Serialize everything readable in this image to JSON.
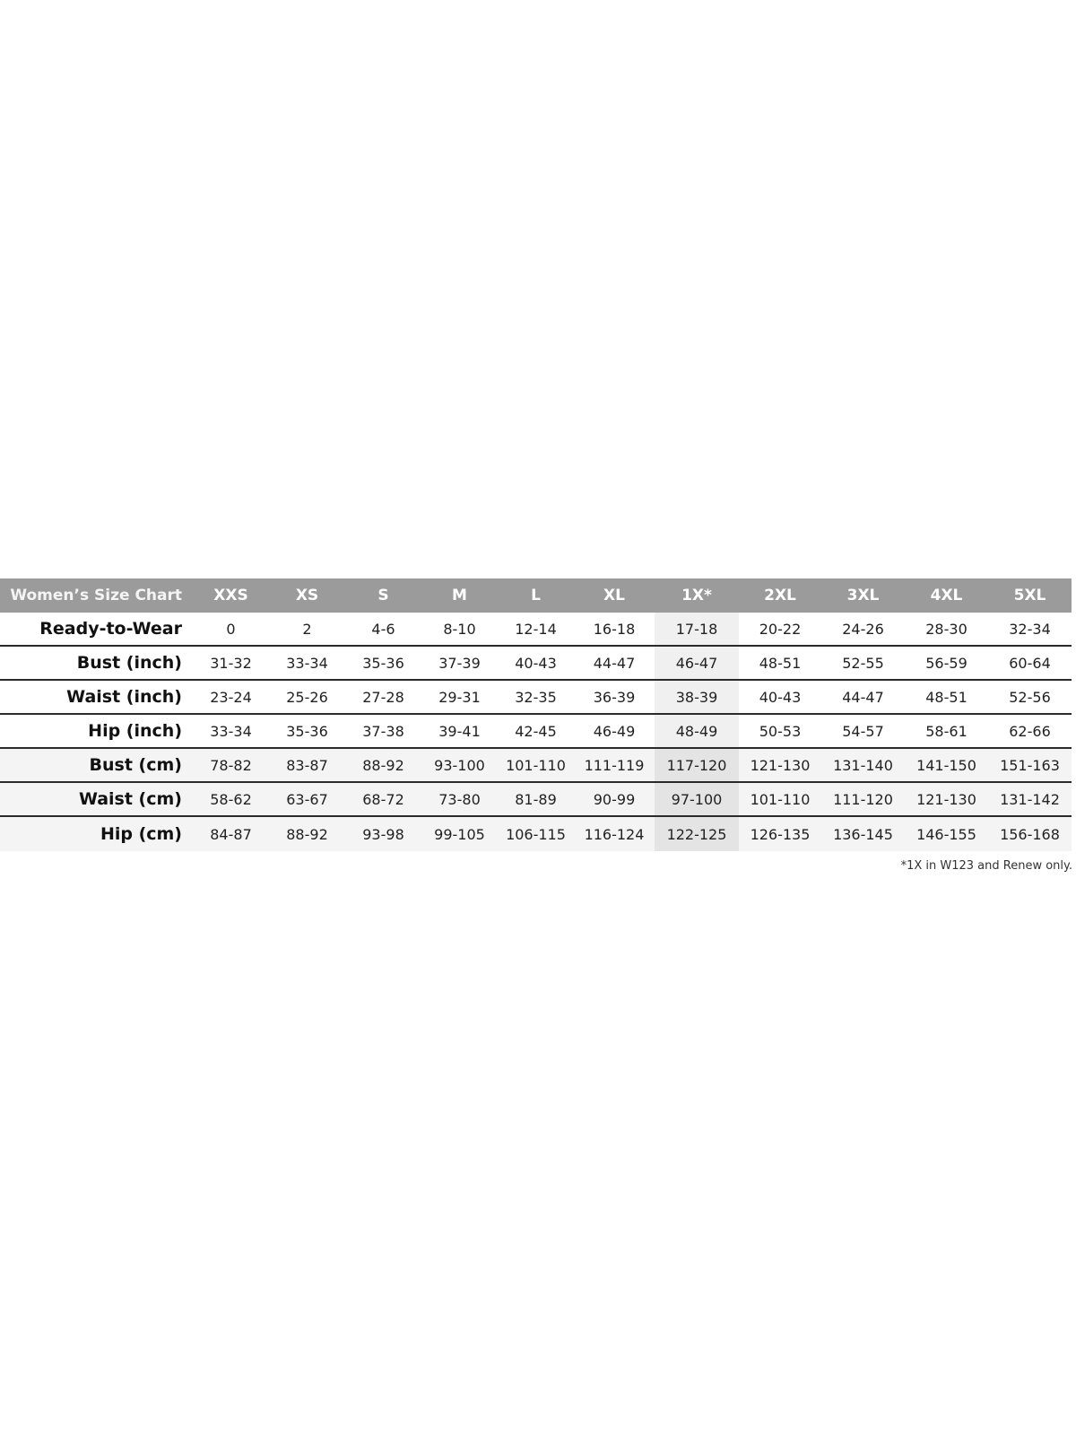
{
  "header": {
    "title": "Women’s Size Chart",
    "sizes": [
      "XXS",
      "XS",
      "S",
      "M",
      "L",
      "XL",
      "1X*",
      "2XL",
      "3XL",
      "4XL",
      "5XL"
    ]
  },
  "rows": [
    {
      "label": "Ready-to-Wear",
      "values": [
        "0",
        "2",
        "4-6",
        "8-10",
        "12-14",
        "16-18",
        "17-18",
        "20-22",
        "24-26",
        "28-30",
        "32-34"
      ]
    },
    {
      "label": "Bust (inch)",
      "values": [
        "31-32",
        "33-34",
        "35-36",
        "37-39",
        "40-43",
        "44-47",
        "46-47",
        "48-51",
        "52-55",
        "56-59",
        "60-64"
      ]
    },
    {
      "label": "Waist (inch)",
      "values": [
        "23-24",
        "25-26",
        "27-28",
        "29-31",
        "32-35",
        "36-39",
        "38-39",
        "40-43",
        "44-47",
        "48-51",
        "52-56"
      ]
    },
    {
      "label": "Hip (inch)",
      "values": [
        "33-34",
        "35-36",
        "37-38",
        "39-41",
        "42-45",
        "46-49",
        "48-49",
        "50-53",
        "54-57",
        "58-61",
        "62-66"
      ]
    },
    {
      "label": "Bust (cm)",
      "values": [
        "78-82",
        "83-87",
        "88-92",
        "93-100",
        "101-110",
        "111-119",
        "117-120",
        "121-130",
        "131-140",
        "141-150",
        "151-163"
      ]
    },
    {
      "label": "Waist (cm)",
      "values": [
        "58-62",
        "63-67",
        "68-72",
        "73-80",
        "81-89",
        "90-99",
        "97-100",
        "101-110",
        "111-120",
        "121-130",
        "131-142"
      ]
    },
    {
      "label": "Hip (cm)",
      "values": [
        "84-87",
        "88-92",
        "93-98",
        "99-105",
        "106-115",
        "116-124",
        "122-125",
        "126-135",
        "136-145",
        "146-155",
        "156-168"
      ]
    }
  ],
  "footnote": "*1X in W123 and Renew only.",
  "colors": {
    "header_bg": "#9b9b9b",
    "highlight_column": "1X*"
  }
}
